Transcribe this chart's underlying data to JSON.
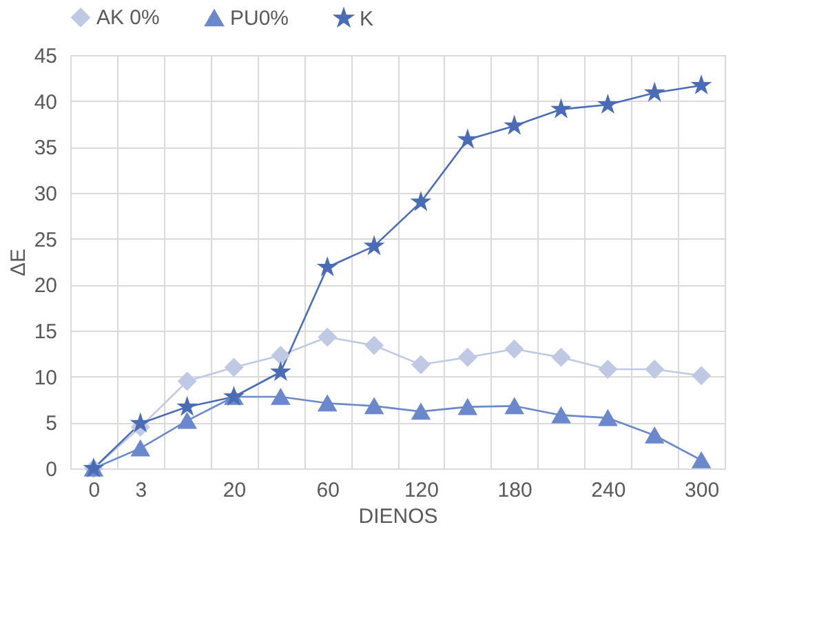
{
  "chart_data": {
    "type": "line",
    "xlabel": "DIENOS",
    "ylabel": "ΔE",
    "categories": [
      "0",
      "3",
      null,
      "20",
      null,
      "60",
      null,
      "120",
      null,
      "180",
      null,
      "240",
      null,
      "300"
    ],
    "series": [
      {
        "name": "AK 0%",
        "color": "#c0c9e4",
        "marker": "diamond",
        "values": [
          0,
          4.5,
          9.5,
          11,
          12.3,
          14.3,
          13.4,
          11.3,
          12.1,
          13,
          12.1,
          10.8,
          10.8,
          10.1
        ]
      },
      {
        "name": "PU0%",
        "color": "#6b88cc",
        "marker": "triangle",
        "values": [
          0,
          2.2,
          5.2,
          7.8,
          7.8,
          7.1,
          6.8,
          6.2,
          6.7,
          6.8,
          5.8,
          5.5,
          3.6,
          0.9
        ]
      },
      {
        "name": "K",
        "color": "#4a6cb5",
        "marker": "star",
        "values": [
          0,
          4.9,
          6.7,
          7.8,
          10.5,
          21.9,
          24.2,
          29,
          35.8,
          37.3,
          39.1,
          39.6,
          40.9,
          41.7
        ]
      }
    ],
    "ylim": [
      0,
      45
    ],
    "yticks": [
      0,
      5,
      10,
      15,
      20,
      25,
      30,
      35,
      40,
      45
    ],
    "grid": true,
    "legend": "top"
  }
}
